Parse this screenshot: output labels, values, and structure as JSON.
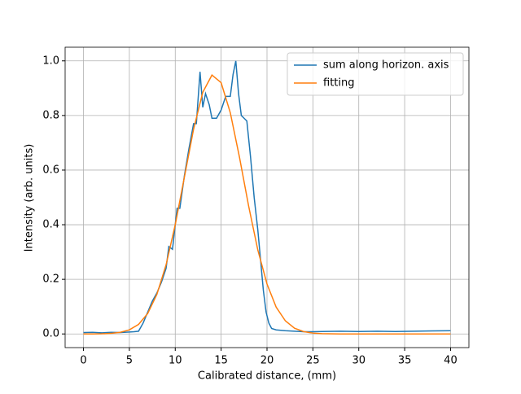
{
  "chart_data": {
    "type": "line",
    "xlabel": "Calibrated distance, (mm)",
    "ylabel": "Intensity (arb. units)",
    "xlim": [
      -2,
      42
    ],
    "xticks": [
      0,
      5,
      10,
      15,
      20,
      25,
      30,
      35,
      40
    ],
    "ylim": [
      -0.05,
      1.05
    ],
    "yticks": [
      0.0,
      0.2,
      0.4,
      0.6,
      0.8,
      1.0
    ],
    "ytick_labels": [
      "0.0",
      "0.2",
      "0.4",
      "0.6",
      "0.8",
      "1.0"
    ],
    "grid": true,
    "legend": "upper right",
    "series": [
      {
        "name": "sum along horizon. axis",
        "color": "#1f77b4",
        "x": [
          0,
          1,
          2,
          3,
          4,
          5,
          5.5,
          6,
          6.5,
          7,
          7.5,
          8,
          8.5,
          9,
          9.3,
          9.7,
          10,
          10.2,
          10.5,
          11,
          11.5,
          12,
          12.3,
          12.7,
          13,
          13.3,
          13.7,
          14,
          14.5,
          15,
          15.5,
          16,
          16.3,
          16.6,
          16.9,
          17.2,
          17.5,
          17.8,
          18.2,
          18.6,
          19,
          19.3,
          19.6,
          19.9,
          20.2,
          20.5,
          21,
          22,
          23,
          24,
          25,
          26,
          28,
          30,
          32,
          34,
          36,
          38,
          40
        ],
        "values": [
          0.005,
          0.006,
          0.004,
          0.006,
          0.005,
          0.007,
          0.008,
          0.01,
          0.04,
          0.08,
          0.12,
          0.15,
          0.19,
          0.24,
          0.32,
          0.31,
          0.4,
          0.46,
          0.46,
          0.58,
          0.68,
          0.77,
          0.77,
          0.96,
          0.83,
          0.88,
          0.84,
          0.79,
          0.79,
          0.82,
          0.87,
          0.87,
          0.95,
          1.0,
          0.88,
          0.8,
          0.79,
          0.78,
          0.65,
          0.5,
          0.38,
          0.27,
          0.16,
          0.08,
          0.04,
          0.02,
          0.015,
          0.012,
          0.01,
          0.008,
          0.008,
          0.009,
          0.01,
          0.009,
          0.01,
          0.009,
          0.01,
          0.011,
          0.012
        ]
      },
      {
        "name": "fitting",
        "color": "#ff7f0e",
        "x": [
          0,
          1,
          2,
          3,
          4,
          5,
          6,
          7,
          8,
          9,
          10,
          11,
          12,
          13,
          14,
          15,
          16,
          17,
          18,
          19,
          20,
          21,
          22,
          23,
          24,
          25,
          26,
          28,
          30,
          35,
          40
        ],
        "values": [
          0.0,
          0.0,
          0.0006,
          0.002,
          0.0058,
          0.015,
          0.035,
          0.075,
          0.145,
          0.253,
          0.4,
          0.575,
          0.75,
          0.885,
          0.948,
          0.92,
          0.81,
          0.647,
          0.468,
          0.307,
          0.183,
          0.098,
          0.048,
          0.021,
          0.0086,
          0.0031,
          0.001,
          0.0,
          0.0,
          0.0,
          0.0
        ]
      }
    ]
  }
}
